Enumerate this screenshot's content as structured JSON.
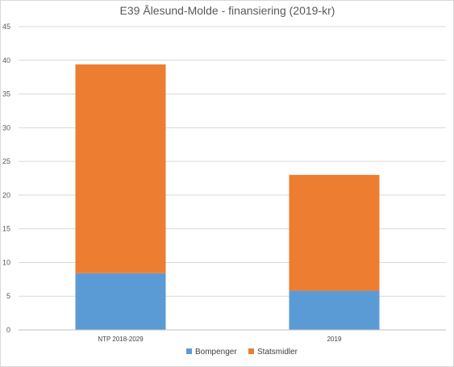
{
  "chart_data": {
    "type": "bar",
    "stacked": true,
    "title": "E39 Ålesund-Molde - finansiering (2019-kr)",
    "xlabel": "",
    "ylabel": "",
    "categories": [
      "NTP 2018-2029",
      "2019"
    ],
    "series": [
      {
        "name": "Bompenger",
        "values": [
          8.4,
          5.8
        ],
        "color": "#5b9bd5"
      },
      {
        "name": "Statsmidler",
        "values": [
          31.0,
          17.2
        ],
        "color": "#ed7d31"
      }
    ],
    "ylim": [
      0,
      45
    ],
    "yticks": [
      0,
      5,
      10,
      15,
      20,
      25,
      30,
      35,
      40,
      45
    ],
    "grid": true,
    "legend": "bottom-center"
  }
}
